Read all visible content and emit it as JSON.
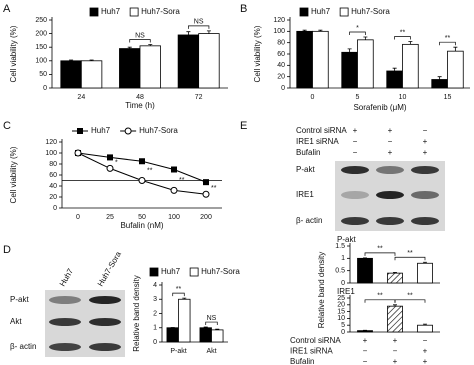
{
  "panel_labels": [
    "A",
    "B",
    "C",
    "D",
    "E"
  ],
  "chart_data": [
    {
      "type": "bar",
      "xlabel": "Time (h)",
      "ylabel": "Cell viability (%)",
      "categories": [
        "24",
        "48",
        "72"
      ],
      "series": [
        {
          "name": "Huh7",
          "color": "#000000",
          "values": [
            100,
            145,
            195
          ],
          "errors": [
            3,
            5,
            12
          ]
        },
        {
          "name": "Huh7-Sora",
          "color": "#ffffff",
          "values": [
            100,
            155,
            200
          ],
          "errors": [
            3,
            5,
            10
          ]
        }
      ],
      "ylim": [
        0,
        250
      ],
      "yticks": [
        0,
        50,
        100,
        150,
        200,
        250
      ],
      "annotations": [
        "NS",
        "NS"
      ]
    },
    {
      "type": "bar",
      "xlabel": "Sorafenib (μM)",
      "ylabel": "Cell viability (%)",
      "categories": [
        "0",
        "5",
        "10",
        "15"
      ],
      "series": [
        {
          "name": "Huh7",
          "color": "#000000",
          "values": [
            100,
            63,
            30,
            15
          ],
          "errors": [
            2,
            6,
            5,
            5
          ]
        },
        {
          "name": "Huh7-Sora",
          "color": "#ffffff",
          "values": [
            100,
            85,
            77,
            65
          ],
          "errors": [
            2,
            5,
            5,
            7
          ]
        }
      ],
      "ylim": [
        0,
        120
      ],
      "yticks": [
        0,
        20,
        40,
        60,
        80,
        100,
        120
      ],
      "annotations": [
        "*",
        "**",
        "**"
      ]
    },
    {
      "type": "line",
      "xlabel": "Bufalin (nM)",
      "ylabel": "Cell viability (%)",
      "categories": [
        "0",
        "25",
        "50",
        "100",
        "200"
      ],
      "series": [
        {
          "name": "Huh7",
          "color": "#000000",
          "marker": "square",
          "values": [
            100,
            92,
            85,
            70,
            47
          ]
        },
        {
          "name": "Huh7-Sora",
          "color": "#000000",
          "marker": "circle",
          "values": [
            100,
            72,
            50,
            32,
            25
          ]
        }
      ],
      "ylim": [
        0,
        120
      ],
      "yticks": [
        0,
        20,
        40,
        60,
        80,
        100,
        120
      ],
      "reference_line": 50,
      "annotations": [
        "*",
        "**",
        "**",
        "**"
      ]
    },
    {
      "type": "bar",
      "ylabel": "Relative band density",
      "categories": [
        "P-akt",
        "Akt"
      ],
      "series": [
        {
          "name": "Huh7",
          "color": "#000000",
          "values": [
            1,
            1
          ],
          "errors": [
            0.02,
            0.05
          ]
        },
        {
          "name": "Huh7-Sora",
          "color": "#ffffff",
          "values": [
            3,
            0.85
          ],
          "errors": [
            0.08,
            0.05
          ]
        }
      ],
      "ylim": [
        0,
        4
      ],
      "yticks": [
        0,
        1,
        2,
        3,
        4
      ],
      "annotations": [
        "**",
        "NS"
      ]
    },
    {
      "type": "bar",
      "title": "P-akt",
      "ylabel": "Relative band density",
      "categories": [
        null,
        null,
        null
      ],
      "series": [
        {
          "values": [
            1,
            0.4,
            0.8
          ],
          "errors": [
            0.02,
            0.03,
            0.04
          ],
          "colors": [
            "#000000",
            "#ffffff",
            "#ffffff"
          ],
          "hatch": [
            false,
            true,
            false
          ]
        }
      ],
      "ylim": [
        0,
        1.5
      ],
      "yticks": [
        0,
        0.5,
        1,
        1.5
      ],
      "annotations": [
        "**",
        "**"
      ]
    },
    {
      "type": "bar",
      "title": "IRE1",
      "categories": [
        null,
        null,
        null
      ],
      "series": [
        {
          "values": [
            1,
            19,
            5
          ],
          "errors": [
            0.3,
            1,
            0.8
          ],
          "colors": [
            "#000000",
            "#ffffff",
            "#ffffff"
          ],
          "hatch": [
            false,
            true,
            false
          ]
        }
      ],
      "ylim": [
        0,
        25
      ],
      "yticks": [
        0,
        5,
        10,
        15,
        20,
        25
      ],
      "annotations": [
        "**",
        "**"
      ]
    }
  ],
  "blot_D": {
    "lanes": [
      "Huh7",
      "Huh7-Sora"
    ],
    "bands": [
      "P-akt",
      "Akt",
      "β- actin"
    ]
  },
  "blot_E": {
    "conditions": [
      {
        "label": "Control siRNA",
        "signs": [
          "+",
          "+",
          "−"
        ]
      },
      {
        "label": "IRE1 siRNA",
        "signs": [
          "−",
          "−",
          "+"
        ]
      },
      {
        "label": "Bufalin",
        "signs": [
          "−",
          "+",
          "+"
        ]
      }
    ],
    "bands": [
      "P-akt",
      "IRE1",
      "β- actin"
    ]
  },
  "conditions_E_bottom": [
    {
      "label": "Control siRNA",
      "signs": [
        "+",
        "+",
        "−"
      ]
    },
    {
      "label": "IRE1 siRNA",
      "signs": [
        "−",
        "−",
        "+"
      ]
    },
    {
      "label": "Bufalin",
      "signs": [
        "−",
        "+",
        "+"
      ]
    }
  ]
}
